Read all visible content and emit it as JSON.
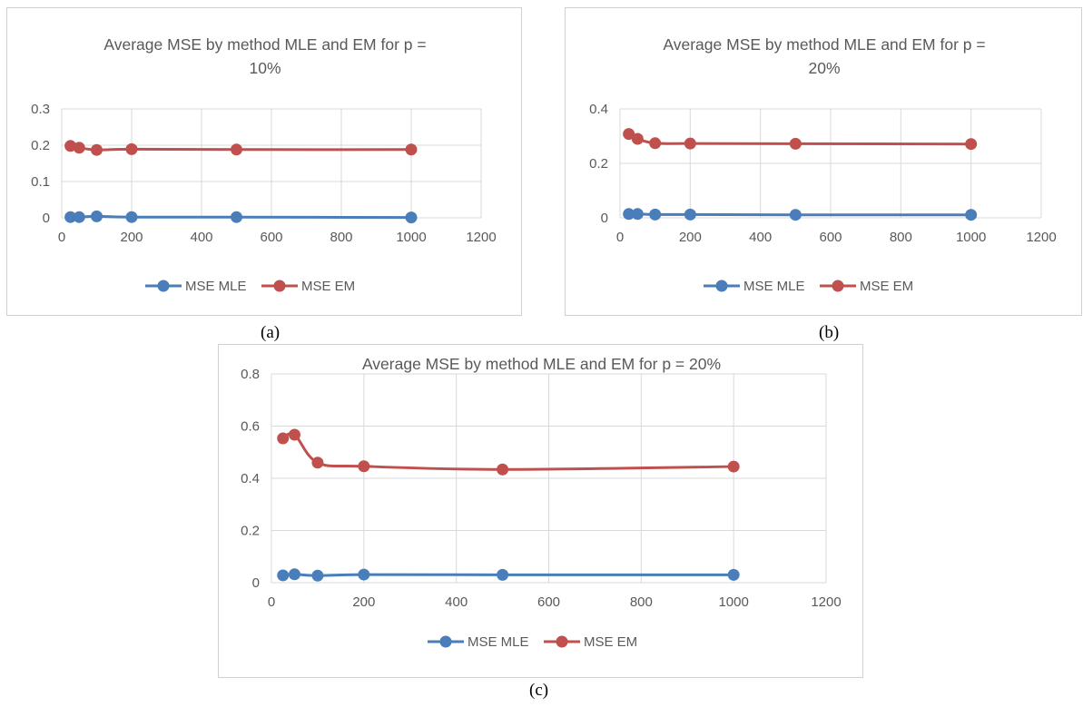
{
  "captions": [
    "(a)",
    "(b)",
    "(c)"
  ],
  "chart_data": [
    {
      "type": "line",
      "title_lines": [
        "Average MSE by method MLE and EM for p =",
        "10%"
      ],
      "x": [
        25,
        50,
        100,
        200,
        500,
        1000
      ],
      "xlim": [
        0,
        1200
      ],
      "xticks": [
        0,
        200,
        400,
        600,
        800,
        1000,
        1200
      ],
      "ylim": [
        0,
        0.3
      ],
      "yticks": [
        0,
        0.1,
        0.2,
        0.3
      ],
      "ytick_labels": [
        "0",
        "0.1",
        "0.2",
        "0.3"
      ],
      "grid": true,
      "legend_position": "bottom",
      "series": [
        {
          "name": "MSE MLE",
          "color": "#4a7ebb",
          "values": [
            0.002,
            0.002,
            0.004,
            0.002,
            0.002,
            0.001
          ]
        },
        {
          "name": "MSE EM",
          "color": "#c0504d",
          "values": [
            0.198,
            0.193,
            0.187,
            0.189,
            0.188,
            0.188
          ]
        }
      ]
    },
    {
      "type": "line",
      "title_lines": [
        "Average MSE by method MLE and EM for p =",
        "20%"
      ],
      "x": [
        25,
        50,
        100,
        200,
        500,
        1000
      ],
      "xlim": [
        0,
        1200
      ],
      "xticks": [
        0,
        200,
        400,
        600,
        800,
        1000,
        1200
      ],
      "ylim": [
        0,
        0.4
      ],
      "yticks": [
        0,
        0.2,
        0.4
      ],
      "ytick_labels": [
        "0",
        "0.2",
        "0.4"
      ],
      "grid": true,
      "legend_position": "bottom",
      "series": [
        {
          "name": "MSE MLE",
          "color": "#4a7ebb",
          "values": [
            0.014,
            0.014,
            0.012,
            0.012,
            0.011,
            0.011
          ]
        },
        {
          "name": "MSE EM",
          "color": "#c0504d",
          "values": [
            0.308,
            0.29,
            0.274,
            0.273,
            0.272,
            0.271
          ]
        }
      ]
    },
    {
      "type": "line",
      "title_lines": [
        "Average MSE by method MLE and EM for p = 20%"
      ],
      "x": [
        25,
        50,
        100,
        200,
        500,
        1000
      ],
      "xlim": [
        0,
        1200
      ],
      "xticks": [
        0,
        200,
        400,
        600,
        800,
        1000,
        1200
      ],
      "ylim": [
        0,
        0.8
      ],
      "yticks": [
        0,
        0.2,
        0.4,
        0.6,
        0.8
      ],
      "ytick_labels": [
        "0",
        "0.2",
        "0.4",
        "0.6",
        "0.8"
      ],
      "grid": true,
      "legend_position": "bottom",
      "series": [
        {
          "name": "MSE MLE",
          "color": "#4a7ebb",
          "values": [
            0.028,
            0.032,
            0.027,
            0.031,
            0.03,
            0.03
          ]
        },
        {
          "name": "MSE EM",
          "color": "#c0504d",
          "values": [
            0.553,
            0.567,
            0.46,
            0.446,
            0.434,
            0.445
          ]
        }
      ]
    }
  ]
}
